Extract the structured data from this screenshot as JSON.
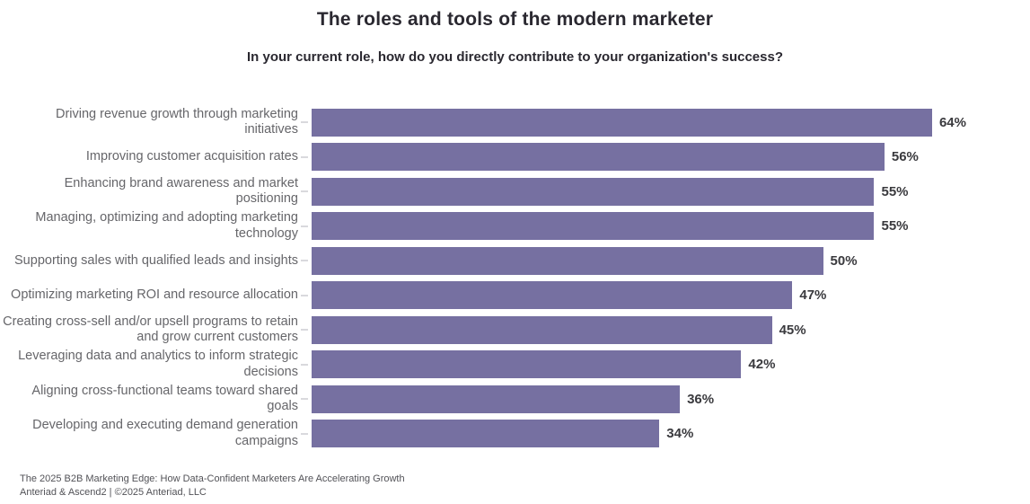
{
  "chart_data": {
    "type": "bar",
    "orientation": "horizontal",
    "title": "The roles and tools of the modern marketer",
    "subtitle": "In your current role, how do you directly contribute to your organization's success?",
    "categories": [
      "Driving revenue growth through marketing initiatives",
      "Improving customer acquisition rates",
      "Enhancing brand awareness and market positioning",
      "Managing, optimizing and adopting marketing technology",
      "Supporting sales with qualified leads and insights",
      "Optimizing marketing ROI and resource allocation",
      "Creating cross-sell and/or upsell programs to retain and grow current customers",
      "Leveraging data and analytics to inform strategic decisions",
      "Aligning cross-functional teams toward shared goals",
      "Developing and executing demand generation campaigns"
    ],
    "values": [
      64,
      56,
      55,
      55,
      50,
      47,
      45,
      42,
      36,
      34
    ],
    "value_suffix": "%",
    "xlim": [
      0,
      64
    ],
    "axis": "hidden",
    "grid": false,
    "legend": false,
    "value_label_position": "outside-end"
  },
  "footer": {
    "line1": "The 2025 B2B Marketing Edge: How Data-Confident Marketers Are Accelerating Growth",
    "line2": "Anteriad & Ascend2 | ©2025 Anteriad, LLC"
  },
  "colors": {
    "bar": "#7670A1",
    "title_text": "#2A2830",
    "category_text": "#66666A",
    "value_text": "#3A3A3E",
    "footer_text": "#525257",
    "tick": "#D9D9DD",
    "background": "#FFFFFF"
  }
}
